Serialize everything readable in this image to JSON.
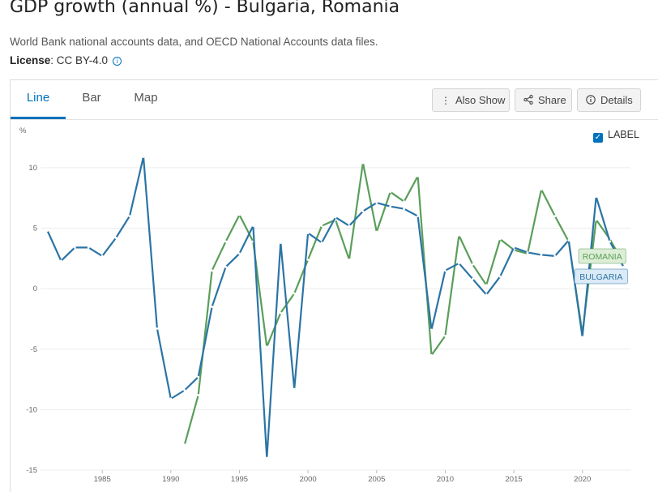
{
  "page": {
    "title": "GDP growth (annual %) - Bulgaria, Romania",
    "source": "World Bank national accounts data, and OECD National Accounts data files.",
    "license_label": "License",
    "license_value": ": CC BY-4.0",
    "info_icon": "info-icon"
  },
  "tabs": [
    {
      "label": "Line",
      "active": true
    },
    {
      "label": "Bar",
      "active": false
    },
    {
      "label": "Map",
      "active": false
    }
  ],
  "toolbar": {
    "also_show": "Also Show",
    "share": "Share",
    "details": "Details"
  },
  "label_toggle": {
    "label": "LABEL",
    "checked": true
  },
  "chart_data": {
    "type": "line",
    "ylabel": "%",
    "ylim": [
      -15,
      11
    ],
    "yticks": [
      10,
      5,
      0,
      -5,
      -10,
      -15
    ],
    "xlim": [
      1980.5,
      2023.5
    ],
    "xticks": [
      1985,
      1990,
      1995,
      2000,
      2005,
      2010,
      2015,
      2020
    ],
    "grid": true,
    "series": [
      {
        "name": "BULGARIA",
        "color": "#2b74a5",
        "label_bg": "#dbeaf6",
        "x": [
          1981,
          1982,
          1983,
          1984,
          1985,
          1986,
          1987,
          1988,
          1989,
          1990,
          1991,
          1992,
          1993,
          1994,
          1995,
          1996,
          1997,
          1998,
          1999,
          2000,
          2001,
          2002,
          2003,
          2004,
          2005,
          2006,
          2007,
          2008,
          2009,
          2010,
          2011,
          2012,
          2013,
          2014,
          2015,
          2016,
          2017,
          2018,
          2019,
          2020,
          2021,
          2022,
          2023
        ],
        "values": [
          4.8,
          2.3,
          3.4,
          3.4,
          2.7,
          4.2,
          6.0,
          10.9,
          -3.3,
          -9.1,
          -8.4,
          -7.3,
          -1.5,
          1.8,
          2.9,
          5.2,
          -14.0,
          3.8,
          -8.3,
          4.6,
          3.8,
          5.9,
          5.2,
          6.4,
          7.1,
          6.8,
          6.6,
          6.0,
          -3.4,
          1.5,
          2.1,
          0.8,
          -0.5,
          1.0,
          3.4,
          3.0,
          2.8,
          2.7,
          4.0,
          -4.0,
          7.6,
          3.9,
          1.8
        ]
      },
      {
        "name": "ROMANIA",
        "color": "#5a9e5a",
        "label_bg": "#ddeed6",
        "x": [
          1991,
          1992,
          1993,
          1994,
          1995,
          1996,
          1997,
          1998,
          1999,
          2000,
          2001,
          2002,
          2003,
          2004,
          2005,
          2006,
          2007,
          2008,
          2009,
          2010,
          2011,
          2012,
          2013,
          2014,
          2015,
          2016,
          2017,
          2018,
          2019,
          2020,
          2021,
          2022,
          2023
        ],
        "values": [
          -12.9,
          -8.8,
          1.5,
          3.9,
          6.1,
          3.9,
          -4.8,
          -2.0,
          -0.4,
          2.4,
          5.2,
          5.7,
          2.4,
          10.4,
          4.7,
          8.0,
          7.2,
          9.3,
          -5.5,
          -3.9,
          4.4,
          2.0,
          0.3,
          4.1,
          3.2,
          2.9,
          8.2,
          6.0,
          3.9,
          -3.7,
          5.7,
          4.1,
          2.1
        ]
      }
    ]
  }
}
